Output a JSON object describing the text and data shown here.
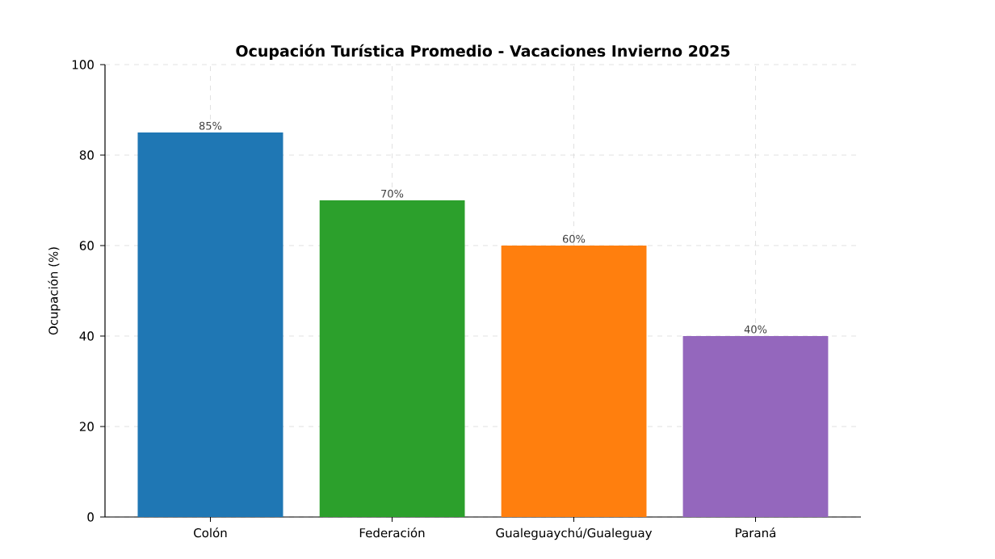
{
  "chart_data": {
    "type": "bar",
    "title": "Ocupación Turística Promedio - Vacaciones Invierno 2025",
    "ylabel": "Ocupación (%)",
    "categories": [
      "Colón",
      "Federación",
      "Gualeguaychú/Gualeguay",
      "Paraná"
    ],
    "values": [
      85,
      70,
      60,
      40
    ],
    "colors": [
      "#1f77b4",
      "#2ca02c",
      "#ff7f0e",
      "#9467bd"
    ],
    "value_labels": [
      "85%",
      "70%",
      "60%",
      "40%"
    ],
    "ylim": [
      0,
      100
    ],
    "yticks": [
      0,
      20,
      40,
      60,
      80,
      100
    ],
    "grid": true
  }
}
